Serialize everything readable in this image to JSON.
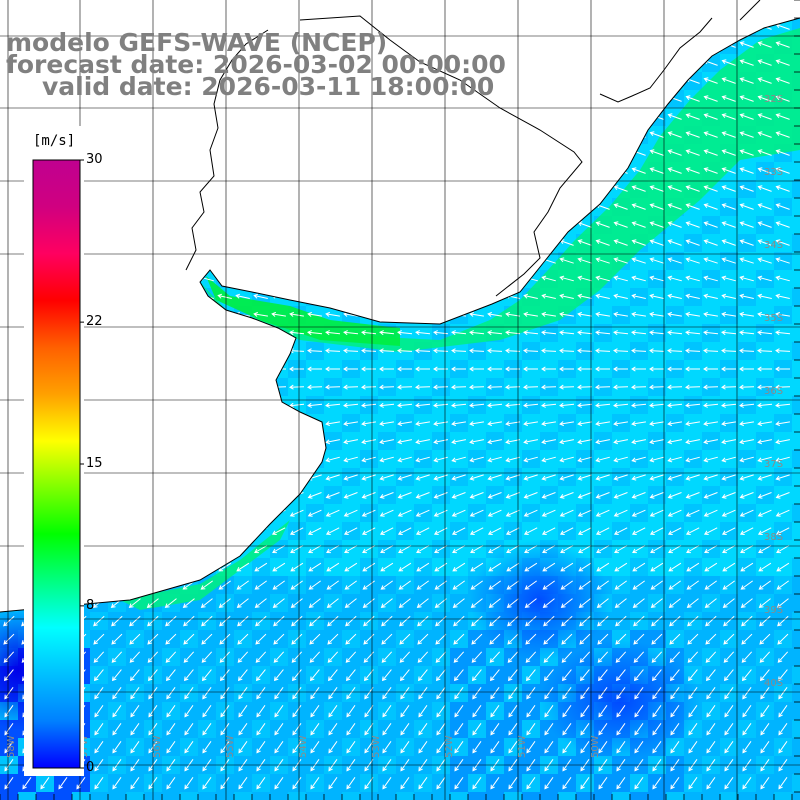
{
  "title": {
    "model": "modelo GEFS-WAVE (NCEP)",
    "forecast_date": "forecast date: 2026-03-02 00:00:00",
    "valid_date": "valid date: 2026-03-11 18:00:00"
  },
  "colorbar": {
    "unit": "[m/s]",
    "min": 0,
    "max": 30,
    "tick_labels": [
      "30",
      "22",
      "15",
      "8",
      "0"
    ],
    "tick_values": [
      30,
      22,
      15,
      8,
      0
    ],
    "colors": [
      "#0000ff",
      "#0080ff",
      "#00c0ff",
      "#00ffff",
      "#00ff80",
      "#00ff00",
      "#80ff00",
      "#ffff00",
      "#ffa000",
      "#ff6000",
      "#ff0000",
      "#ff0060",
      "#d00080",
      "#c00090"
    ]
  },
  "map": {
    "variable": "wind speed",
    "latitude_labels": [
      "32S",
      "33S",
      "34S",
      "35S",
      "36S",
      "37S",
      "38S",
      "39S",
      "40S"
    ],
    "longitude_labels": [
      "58W",
      "57W",
      "56W",
      "55W",
      "54W",
      "53W",
      "52W",
      "51W",
      "50W"
    ],
    "land_color": "#ffffff",
    "grid_color": "#000000",
    "wind_arrow_color": "#ffffff",
    "wind_direction": "from east-northeast, veering to northeast in the south",
    "wind_speed_range_ms": [
      2,
      11
    ]
  }
}
